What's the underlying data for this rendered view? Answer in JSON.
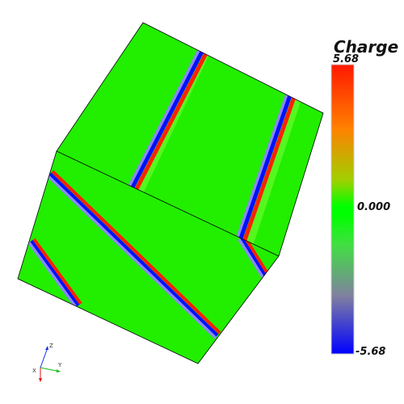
{
  "legend": {
    "title": "Charge",
    "max_label": "5.68",
    "mid_label": "0.000",
    "min_label": "-5.68",
    "colors": {
      "max": "#ff2000",
      "upper": "#ff9a00",
      "mid": "#00ff00",
      "lower": "#8080a0",
      "min": "#0000ff"
    }
  },
  "axes_gizmo": {
    "x_label": "X",
    "y_label": "Y",
    "z_label": "Z",
    "x_color": "#e01010",
    "y_color": "#10c010",
    "z_color": "#1030e0"
  },
  "cube": {
    "face_color": "#22ee00",
    "stripe_colors": [
      "#ff2000",
      "#0010ff"
    ]
  }
}
